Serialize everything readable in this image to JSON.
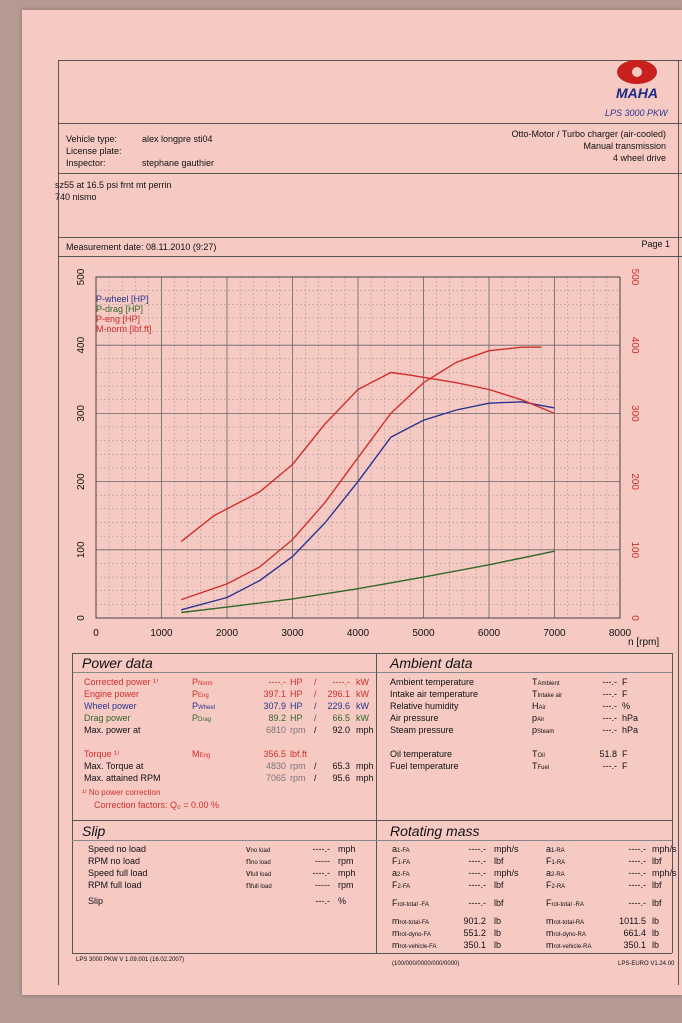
{
  "header": {
    "model": "LPS 3000 PKW"
  },
  "vehicle": {
    "type_label": "Vehicle type:",
    "type_value": "alex longpre sti04",
    "license_label": "License plate:",
    "inspector_label": "Inspector:",
    "inspector_value": "stephane gauthier",
    "engine": "Otto-Motor / Turbo charger (air-cooled)",
    "transmission": "Manual transmission",
    "drive": "4 wheel drive",
    "note1": "sz55 at 16.5 psi frnt mt perrin",
    "note2": "740 nismo"
  },
  "measurement": {
    "date": "Measurement date: 08.11.2010 (9:27)",
    "page": "Page 1"
  },
  "chart_data": {
    "type": "line",
    "xlabel": "n [rpm]",
    "xlim": [
      0,
      8000
    ],
    "ylim": [
      0,
      500
    ],
    "x_ticks": [
      "0",
      "1000",
      "2000",
      "3000",
      "4000",
      "5000",
      "6000",
      "7000",
      "8000"
    ],
    "y_ticks_left": [
      "0",
      "100",
      "200",
      "300",
      "400",
      "500"
    ],
    "y_ticks_right": [
      "0",
      "100",
      "200",
      "300",
      "400",
      "500"
    ],
    "grid": true,
    "legend": "top-left",
    "series": [
      {
        "name": "P-wheel [HP]",
        "color": "#2a3590",
        "points": [
          [
            1300,
            12
          ],
          [
            2000,
            30
          ],
          [
            2500,
            55
          ],
          [
            3000,
            90
          ],
          [
            3500,
            140
          ],
          [
            4000,
            200
          ],
          [
            4500,
            265
          ],
          [
            5000,
            290
          ],
          [
            5500,
            305
          ],
          [
            6000,
            315
          ],
          [
            6500,
            317
          ],
          [
            7000,
            308
          ]
        ]
      },
      {
        "name": "P-drag [HP]",
        "color": "#2f6a2a",
        "points": [
          [
            1300,
            8
          ],
          [
            2000,
            16
          ],
          [
            3000,
            28
          ],
          [
            4000,
            43
          ],
          [
            5000,
            60
          ],
          [
            6000,
            78
          ],
          [
            7000,
            98
          ]
        ]
      },
      {
        "name": "P-eng [HP]",
        "color": "#d0302a",
        "points": [
          [
            1300,
            27
          ],
          [
            2000,
            50
          ],
          [
            2500,
            75
          ],
          [
            3000,
            115
          ],
          [
            3500,
            170
          ],
          [
            4000,
            235
          ],
          [
            4500,
            300
          ],
          [
            5000,
            345
          ],
          [
            5500,
            375
          ],
          [
            6000,
            392
          ],
          [
            6500,
            397
          ],
          [
            6800,
            397
          ]
        ]
      },
      {
        "name": "M-norm [lbf.ft]",
        "color": "#d0302a",
        "points": [
          [
            1300,
            112
          ],
          [
            1800,
            150
          ],
          [
            2500,
            185
          ],
          [
            3000,
            225
          ],
          [
            3500,
            285
          ],
          [
            4000,
            335
          ],
          [
            4500,
            360
          ],
          [
            4800,
            356
          ],
          [
            5500,
            345
          ],
          [
            6000,
            335
          ],
          [
            6500,
            320
          ],
          [
            7000,
            300
          ]
        ]
      }
    ]
  },
  "power": {
    "title": "Power data",
    "rows": [
      {
        "label": "Corrected power ¹⁾",
        "sym": "P",
        "sub": "Norm",
        "v1": "----.-",
        "u1": "HP",
        "v2": "----.-",
        "u2": "kW",
        "cls": "red"
      },
      {
        "label": "Engine power",
        "sym": "P",
        "sub": "Eng",
        "v1": "397.1",
        "u1": "HP",
        "v2": "296.1",
        "u2": "kW",
        "cls": "red"
      },
      {
        "label": "Wheel power",
        "sym": "P",
        "sub": "Wheel",
        "v1": "307.9",
        "u1": "HP",
        "v2": "229.6",
        "u2": "kW",
        "cls": "blue"
      },
      {
        "label": "Drag power",
        "sym": "P",
        "sub": "Drag",
        "v1": "89.2",
        "u1": "HP",
        "v2": "66.5",
        "u2": "kW",
        "cls": "green"
      },
      {
        "label": "Max. power at",
        "sym": "",
        "sub": "",
        "v1": "6810",
        "u1": "rpm",
        "v2": "92.0",
        "u2": "mph",
        "cls": ""
      },
      {
        "label": "",
        "sym": "",
        "sub": "",
        "v1": "",
        "u1": "",
        "v2": "",
        "u2": "",
        "cls": ""
      },
      {
        "label": "Torque ¹⁾",
        "sym": "M",
        "sub": "Eng",
        "v1": "356.5",
        "u1": "lbf.ft",
        "v2": "",
        "u2": "",
        "cls": "red"
      },
      {
        "label": "Max. Torque at",
        "sym": "",
        "sub": "",
        "v1": "4830",
        "u1": "rpm",
        "v2": "65.3",
        "u2": "mph",
        "cls": ""
      },
      {
        "label": "Max. attained RPM",
        "sym": "",
        "sub": "",
        "v1": "7065",
        "u1": "rpm",
        "v2": "95.6",
        "u2": "mph",
        "cls": ""
      }
    ],
    "note": "¹⁾ No power correction",
    "correction": "Correction factors: Q₀ =   0.00 %"
  },
  "ambient": {
    "title": "Ambient data",
    "rows": [
      {
        "label": "Ambient temperature",
        "sym": "T",
        "sub": "Ambient",
        "val": "---.-",
        "unit": "F"
      },
      {
        "label": "Intake air temperature",
        "sym": "T",
        "sub": "Intake air",
        "val": "---.-",
        "unit": "F"
      },
      {
        "label": "Relative humidity",
        "sym": "H",
        "sub": "Air",
        "val": "---.-",
        "unit": "%"
      },
      {
        "label": "Air pressure",
        "sym": "p",
        "sub": "Air",
        "val": "---.-",
        "unit": "hPa"
      },
      {
        "label": "Steam pressure",
        "sym": "p",
        "sub": "Steam",
        "val": "---.-",
        "unit": "hPa"
      },
      {
        "label": "",
        "sym": "",
        "sub": "",
        "val": "",
        "unit": ""
      },
      {
        "label": "Oil temperature",
        "sym": "T",
        "sub": "Oil",
        "val": "51.8",
        "unit": "F"
      },
      {
        "label": "Fuel temperature",
        "sym": "T",
        "sub": "Fuel",
        "val": "---.-",
        "unit": "F"
      }
    ]
  },
  "slip": {
    "title": "Slip",
    "rows": [
      {
        "label": "Speed no load",
        "sym": "v",
        "sub": "no load",
        "val": "----.-",
        "unit": "mph"
      },
      {
        "label": "RPM no load",
        "sym": "n",
        "sub": "no load",
        "val": "-----",
        "unit": "rpm"
      },
      {
        "label": "Speed full load",
        "sym": "v",
        "sub": "full load",
        "val": "----.-",
        "unit": "mph"
      },
      {
        "label": "RPM full load",
        "sym": "n",
        "sub": "full load",
        "val": "-----",
        "unit": "rpm"
      },
      {
        "label": "Slip",
        "sym": "",
        "sub": "",
        "val": "---.-",
        "unit": "%"
      }
    ]
  },
  "rotating": {
    "title": "Rotating mass",
    "left": [
      {
        "sym": "a",
        "sub": "1-FA",
        "val": "----.-",
        "unit": "mph/s"
      },
      {
        "sym": "F",
        "sub": "1-FA",
        "val": "----.-",
        "unit": "lbf"
      },
      {
        "sym": "a",
        "sub": "2-FA",
        "val": "----.-",
        "unit": "mph/s"
      },
      {
        "sym": "F",
        "sub": "2-FA",
        "val": "----.-",
        "unit": "lbf"
      },
      {
        "sym": "F",
        "sub": "rot-total -FA",
        "val": "----.-",
        "unit": "lbf"
      },
      {
        "sym": "m",
        "sub": "rot-total-FA",
        "val": "901.2",
        "unit": "lb"
      },
      {
        "sym": "m",
        "sub": "rot-dyno-FA",
        "val": "551.2",
        "unit": "lb"
      },
      {
        "sym": "m",
        "sub": "rot-vehicle-FA",
        "val": "350.1",
        "unit": "lb"
      }
    ],
    "right": [
      {
        "sym": "a",
        "sub": "1-RA",
        "val": "----.-",
        "unit": "mph/s"
      },
      {
        "sym": "F",
        "sub": "1-RA",
        "val": "----.-",
        "unit": "lbf"
      },
      {
        "sym": "a",
        "sub": "2-RA",
        "val": "----.-",
        "unit": "mph/s"
      },
      {
        "sym": "F",
        "sub": "2-RA",
        "val": "----.-",
        "unit": "lbf"
      },
      {
        "sym": "F",
        "sub": "rot-total -RA",
        "val": "----.-",
        "unit": "lbf"
      },
      {
        "sym": "m",
        "sub": "rot-total-RA",
        "val": "1011.5",
        "unit": "lb"
      },
      {
        "sym": "m",
        "sub": "rot-dyno-RA",
        "val": "661.4",
        "unit": "lb"
      },
      {
        "sym": "m",
        "sub": "rot-vehicle-RA",
        "val": "350.1",
        "unit": "lb"
      }
    ]
  },
  "footer": {
    "left": "LPS 3000 PKW V 1.09.001 (16.02.2007)",
    "center": "(100/000/0000/000/0000)",
    "right": "LPS-EURO V1.24.00"
  }
}
